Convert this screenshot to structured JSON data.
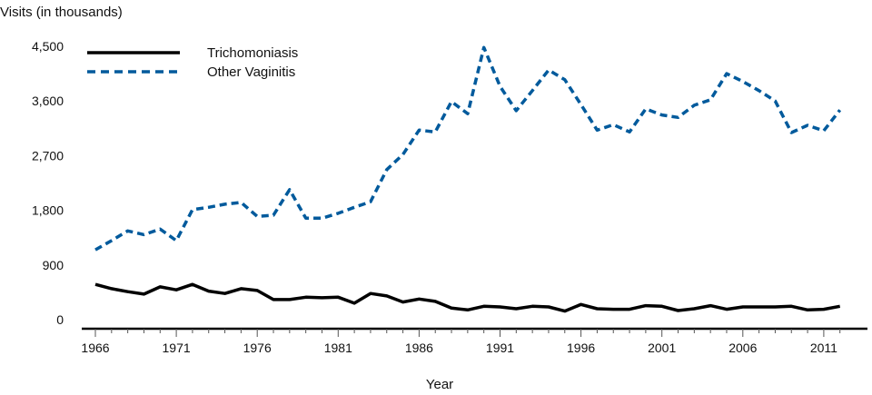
{
  "chart_data": {
    "type": "line",
    "title": "",
    "ylabel": "Visits (in thousands)",
    "xlabel": "Year",
    "ylim": [
      0,
      4500
    ],
    "xlim": [
      1966,
      2012
    ],
    "yticks": [
      0,
      900,
      1800,
      2700,
      3600,
      4500
    ],
    "ytick_labels": [
      "0",
      "900",
      "1,800",
      "2,700",
      "3,600",
      "4,500"
    ],
    "xticks": [
      1966,
      1971,
      1976,
      1981,
      1986,
      1991,
      1996,
      2001,
      2006,
      2011
    ],
    "xtick_labels": [
      "1966",
      "1971",
      "1976",
      "1981",
      "1986",
      "1991",
      "1996",
      "2001",
      "2006",
      "2011"
    ],
    "grid": false,
    "legend_position": "top-left",
    "x": [
      1966,
      1967,
      1968,
      1969,
      1970,
      1971,
      1972,
      1973,
      1974,
      1975,
      1976,
      1977,
      1978,
      1979,
      1980,
      1981,
      1982,
      1983,
      1984,
      1985,
      1986,
      1987,
      1988,
      1989,
      1990,
      1991,
      1992,
      1993,
      1994,
      1995,
      1996,
      1997,
      1998,
      1999,
      2000,
      2001,
      2002,
      2003,
      2004,
      2005,
      2006,
      2007,
      2008,
      2009,
      2010,
      2011,
      2012
    ],
    "series": [
      {
        "name": "Trichomoniasis",
        "color": "#000000",
        "style": "solid",
        "values": [
          580,
          510,
          460,
          420,
          540,
          490,
          580,
          470,
          430,
          510,
          480,
          330,
          330,
          370,
          360,
          370,
          270,
          430,
          390,
          290,
          340,
          300,
          190,
          160,
          220,
          210,
          180,
          220,
          210,
          140,
          250,
          180,
          170,
          170,
          230,
          220,
          150,
          180,
          230,
          170,
          210,
          210,
          210,
          220,
          160,
          170,
          220
        ]
      },
      {
        "name": "Other Vaginitis",
        "color": "#005a9c",
        "style": "dashed",
        "values": [
          1150,
          1300,
          1460,
          1400,
          1490,
          1300,
          1810,
          1850,
          1900,
          1930,
          1700,
          1720,
          2140,
          1670,
          1670,
          1750,
          1850,
          1940,
          2470,
          2720,
          3120,
          3090,
          3590,
          3390,
          4480,
          3840,
          3440,
          3770,
          4110,
          3950,
          3540,
          3120,
          3210,
          3090,
          3470,
          3370,
          3330,
          3530,
          3620,
          4050,
          3920,
          3770,
          3600,
          3080,
          3200,
          3110,
          3450
        ]
      }
    ]
  }
}
